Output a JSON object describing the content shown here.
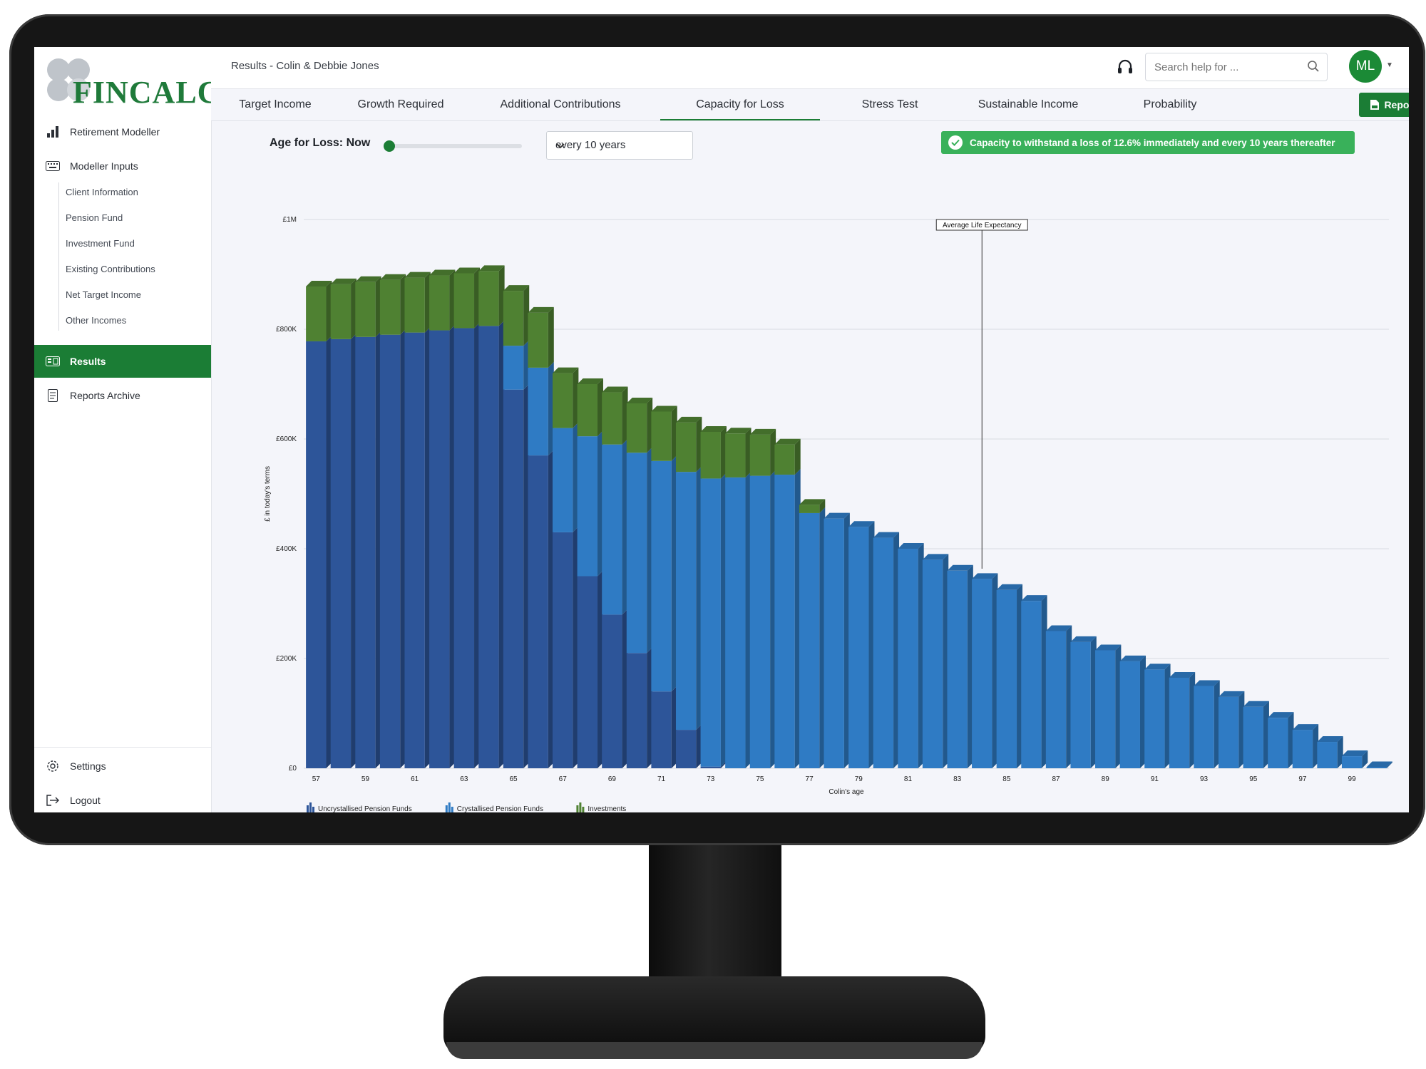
{
  "app": {
    "logo_text": "FINCALC",
    "page_title": "Results - Colin & Debbie Jones",
    "brand_color": "#1b7d35"
  },
  "sidebar": {
    "items": [
      {
        "label": "Retirement Modeller",
        "icon": "bar-chart-icon"
      },
      {
        "label": "Modeller Inputs",
        "icon": "keyboard-icon"
      },
      {
        "label": "Results",
        "icon": "results-icon",
        "active": true
      },
      {
        "label": "Reports Archive",
        "icon": "document-icon"
      }
    ],
    "sub_items": [
      {
        "label": "Client Information"
      },
      {
        "label": "Pension Fund"
      },
      {
        "label": "Investment Fund"
      },
      {
        "label": "Existing Contributions"
      },
      {
        "label": "Net Target Income"
      },
      {
        "label": "Other Incomes"
      }
    ],
    "footer": [
      {
        "label": "Settings",
        "icon": "gear-icon"
      },
      {
        "label": "Logout",
        "icon": "logout-icon"
      }
    ]
  },
  "header": {
    "search_placeholder": "Search help for ...",
    "avatar_initials": "ML"
  },
  "tabs": [
    {
      "label": "Target Income"
    },
    {
      "label": "Growth Required"
    },
    {
      "label": "Additional Contributions"
    },
    {
      "label": "Capacity for Loss",
      "active": true
    },
    {
      "label": "Stress Test"
    },
    {
      "label": "Sustainable Income"
    },
    {
      "label": "Probability"
    }
  ],
  "report_button": "Report",
  "controls": {
    "age_label": "Age for Loss: Now",
    "slider_value": 0,
    "frequency": "every 10 years",
    "banner": "Capacity to withstand a loss of 12.6% immediately and every 10 years thereafter"
  },
  "chart_data": {
    "type": "bar",
    "stacked": true,
    "xlabel": "Colin's age",
    "ylabel": "£ in today's terms",
    "ylim": [
      0,
      1000000
    ],
    "y_ticks": [
      "£0",
      "£200K",
      "£400K",
      "£600K",
      "£800K",
      "£1M"
    ],
    "x": [
      57,
      58,
      59,
      60,
      61,
      62,
      63,
      64,
      65,
      66,
      67,
      68,
      69,
      70,
      71,
      72,
      73,
      74,
      75,
      76,
      77,
      78,
      79,
      80,
      81,
      82,
      83,
      84,
      85,
      86,
      87,
      88,
      89,
      90,
      91,
      92,
      93,
      94,
      95,
      96,
      97,
      98,
      99,
      100
    ],
    "x_tick_labels": [
      "57",
      "59",
      "61",
      "63",
      "65",
      "67",
      "69",
      "71",
      "73",
      "75",
      "77",
      "79",
      "81",
      "83",
      "85",
      "87",
      "89",
      "91",
      "93",
      "95",
      "97",
      "99"
    ],
    "series": [
      {
        "name": "Uncrystallised Pension Funds",
        "color": "#2d5599",
        "values": [
          778000,
          782000,
          786000,
          790000,
          794000,
          798000,
          802000,
          806000,
          690000,
          570000,
          430000,
          350000,
          280000,
          210000,
          140000,
          70000,
          3000,
          0,
          0,
          0,
          0,
          0,
          0,
          0,
          0,
          0,
          0,
          0,
          0,
          0,
          0,
          0,
          0,
          0,
          0,
          0,
          0,
          0,
          0,
          0,
          0,
          0,
          0,
          0
        ]
      },
      {
        "name": "Crystallised Pension Funds",
        "color": "#2f7bc4",
        "values": [
          0,
          0,
          0,
          0,
          0,
          0,
          0,
          0,
          80000,
          160000,
          190000,
          255000,
          310000,
          365000,
          420000,
          470000,
          525000,
          530000,
          533000,
          535000,
          465000,
          455000,
          440000,
          420000,
          400000,
          380000,
          360000,
          345000,
          325000,
          305000,
          250000,
          230000,
          215000,
          195000,
          180000,
          165000,
          150000,
          130000,
          112000,
          92000,
          70000,
          48000,
          22000,
          2000
        ]
      },
      {
        "name": "Investments",
        "color": "#4f8132",
        "values": [
          100000,
          100000,
          100000,
          100000,
          100000,
          100000,
          100000,
          100000,
          100000,
          100000,
          100000,
          95000,
          95000,
          90000,
          90000,
          90000,
          85000,
          80000,
          75000,
          55000,
          15000,
          0,
          0,
          0,
          0,
          0,
          0,
          0,
          0,
          0,
          0,
          0,
          0,
          0,
          0,
          0,
          0,
          0,
          0,
          0,
          0,
          0,
          0,
          0
        ]
      }
    ],
    "annotation": {
      "label": "Average Life Expectancy",
      "x": 84
    },
    "legend_position": "bottom-left",
    "grid": true
  }
}
